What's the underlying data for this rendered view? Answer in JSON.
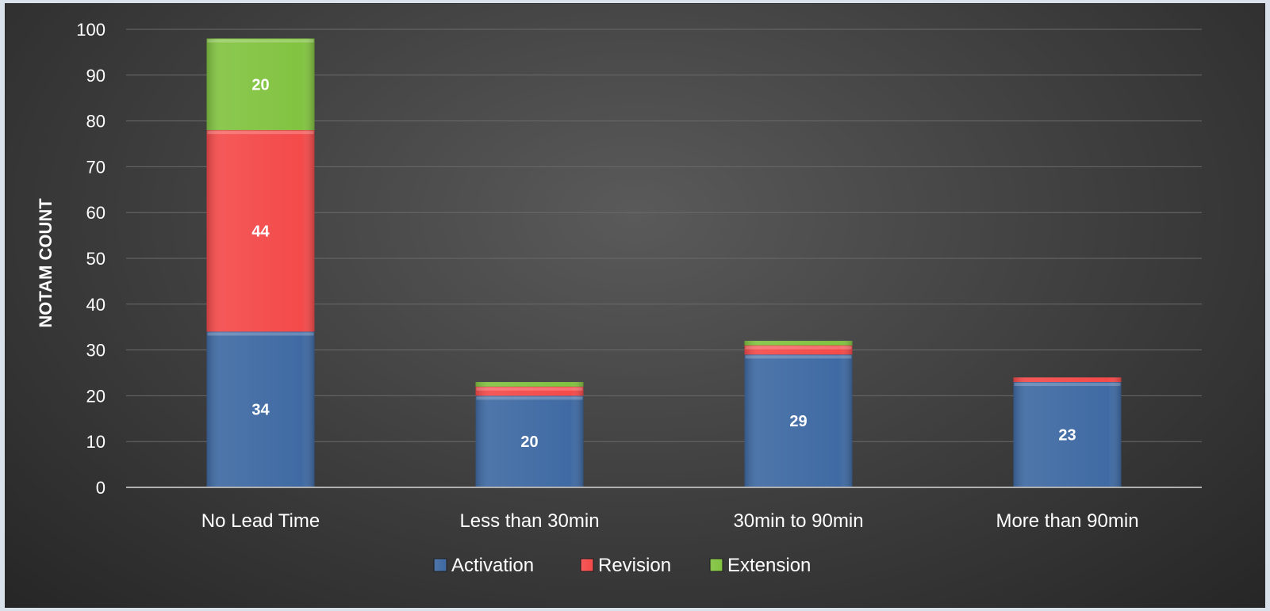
{
  "chart_data": {
    "type": "bar",
    "stacked": true,
    "categories": [
      "No Lead Time",
      "Less than 30min",
      "30min to 90min",
      "More than 90min"
    ],
    "series": [
      {
        "name": "Activation",
        "values": [
          34,
          20,
          29,
          23
        ],
        "color": "#3f6aa3"
      },
      {
        "name": "Revision",
        "values": [
          44,
          2,
          2,
          1
        ],
        "color": "#f44a4a"
      },
      {
        "name": "Extension",
        "values": [
          20,
          1,
          1,
          0
        ],
        "color": "#82c341"
      }
    ],
    "data_labels": [
      [
        "34",
        "20",
        "29",
        "23"
      ],
      [
        "44",
        "",
        "",
        ""
      ],
      [
        "20",
        "",
        "",
        ""
      ]
    ],
    "ylabel": "NOTAM COUNT",
    "ylim": [
      0,
      100
    ],
    "yticks": [
      0,
      10,
      20,
      30,
      40,
      50,
      60,
      70,
      80,
      90,
      100
    ],
    "grid": true,
    "legend": "bottom"
  }
}
